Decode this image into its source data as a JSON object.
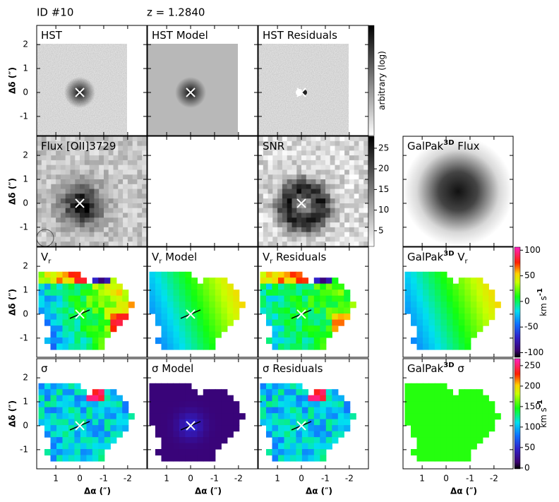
{
  "header": {
    "id": "ID #10",
    "redshift": "z = 1.2840"
  },
  "panels": [
    {
      "title": [
        {
          "text": "HST"
        }
      ]
    },
    {
      "title": [
        {
          "text": "HST Model"
        }
      ]
    },
    {
      "title": [
        {
          "text": "HST Residuals"
        }
      ]
    },
    {
      "title": [
        {
          "text": "Flux [OII]3729"
        }
      ]
    },
    {
      "title": []
    },
    {
      "title": [
        {
          "text": "SNR"
        }
      ]
    },
    {
      "title": [
        {
          "text": "GalPak"
        },
        {
          "text": "3D",
          "sup": true
        },
        {
          "text": " Flux"
        }
      ]
    },
    {
      "title": [
        {
          "text": "V"
        },
        {
          "text": "r",
          "sub": true
        }
      ]
    },
    {
      "title": [
        {
          "text": "V"
        },
        {
          "text": "r",
          "sub": true
        },
        {
          "text": " Model"
        }
      ]
    },
    {
      "title": [
        {
          "text": "V"
        },
        {
          "text": "r",
          "sub": true
        },
        {
          "text": " Residuals"
        }
      ]
    },
    {
      "title": [
        {
          "text": "GalPak"
        },
        {
          "text": "3D",
          "sup": true
        },
        {
          "text": " V"
        },
        {
          "text": "r",
          "sub": true
        }
      ]
    },
    {
      "title": [
        {
          "text": "σ"
        }
      ]
    },
    {
      "title": [
        {
          "text": "σ Model"
        }
      ]
    },
    {
      "title": [
        {
          "text": "σ Residuals"
        }
      ]
    },
    {
      "title": [
        {
          "text": "GalPak"
        },
        {
          "text": "3D",
          "sup": true
        },
        {
          "text": " σ"
        }
      ]
    }
  ],
  "axes": {
    "x_label": "Δα (″)",
    "y_label": "Δδ (″)",
    "xlim": [
      1.8,
      -2.8
    ],
    "ylim": [
      -1.8,
      2.8
    ],
    "xticks": [
      1,
      0,
      -1,
      -2
    ],
    "yticks": [
      -1,
      0,
      1,
      2
    ]
  },
  "colorbars": [
    {
      "label": [
        {
          "text": "arbitrary (log)"
        }
      ]
    },
    {
      "lim": [
        1.2,
        27.9
      ],
      "ticks": [
        5,
        10,
        15,
        20,
        25
      ]
    },
    {
      "label": [
        {
          "text": "km s"
        },
        {
          "text": "-1",
          "sup": true
        }
      ],
      "lim": [
        -109,
        106
      ],
      "ticks": [
        -100,
        -50,
        0,
        50,
        100
      ]
    },
    {
      "label": [
        {
          "text": "km s"
        },
        {
          "text": "-1",
          "sup": true
        }
      ],
      "lim": [
        -2,
        267
      ],
      "ticks": [
        0,
        50,
        100,
        150,
        200,
        250
      ]
    }
  ]
}
